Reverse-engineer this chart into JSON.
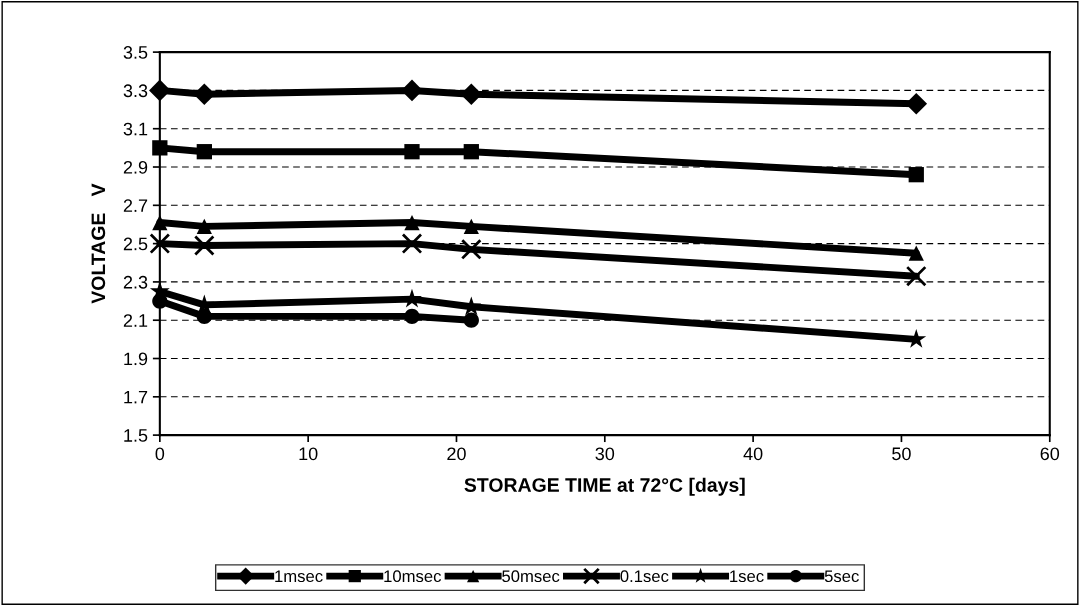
{
  "chart_data": {
    "type": "line",
    "xlabel": "STORAGE TIME at 72°C [days]",
    "ylabel": "VOLTAGE   V",
    "x": [
      0,
      3,
      17,
      21,
      51
    ],
    "xlim": [
      0,
      60
    ],
    "xticks": [
      0,
      10,
      20,
      30,
      40,
      50,
      60
    ],
    "ylim": [
      1.5,
      3.5
    ],
    "yticks": [
      1.5,
      1.7,
      1.9,
      2.1,
      2.3,
      2.5,
      2.7,
      2.9,
      3.1,
      3.3,
      3.5
    ],
    "grid": "y",
    "legend": "bottom",
    "line_style": "solid",
    "series": [
      {
        "name": "1msec",
        "color": "#000000",
        "marker": "diamond",
        "values": [
          3.3,
          3.28,
          3.3,
          3.28,
          3.23
        ]
      },
      {
        "name": "10msec",
        "color": "#000000",
        "marker": "square",
        "values": [
          3.0,
          2.98,
          2.98,
          2.98,
          2.86
        ]
      },
      {
        "name": "50msec",
        "color": "#000000",
        "marker": "triangle",
        "values": [
          2.61,
          2.59,
          2.61,
          2.59,
          2.45
        ]
      },
      {
        "name": "0.1sec",
        "color": "#000000",
        "marker": "cross",
        "values": [
          2.5,
          2.49,
          2.5,
          2.47,
          2.33
        ]
      },
      {
        "name": "1sec",
        "color": "#000000",
        "marker": "star",
        "values": [
          2.25,
          2.18,
          2.21,
          2.17,
          2.0
        ]
      },
      {
        "name": "5sec",
        "color": "#000000",
        "marker": "circle",
        "values": [
          2.2,
          2.12,
          2.12,
          2.1,
          null
        ]
      }
    ]
  }
}
